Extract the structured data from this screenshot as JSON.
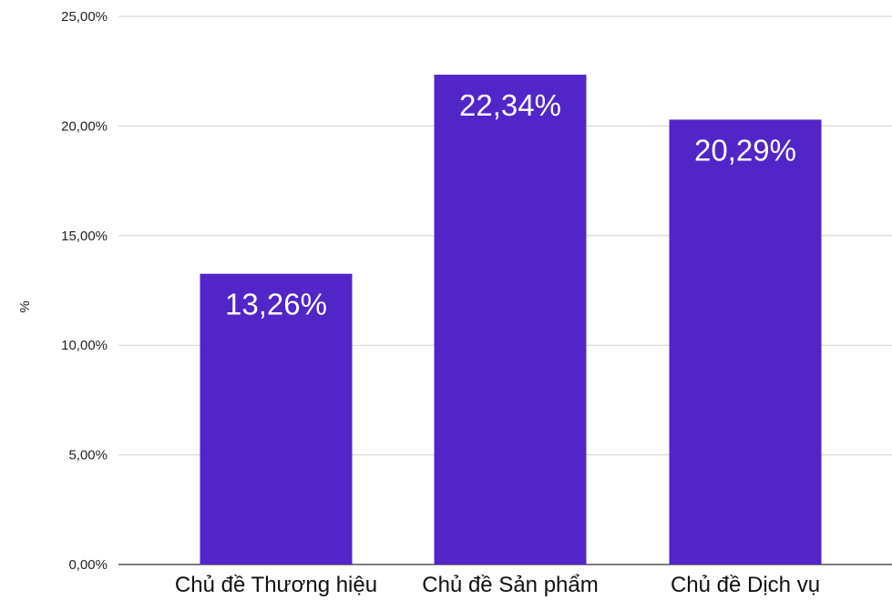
{
  "chart_data": {
    "type": "bar",
    "categories": [
      "Chủ đề Thương hiệu",
      "Chủ đề Sản phẩm",
      "Chủ đề Dịch vụ"
    ],
    "values": [
      13.26,
      22.34,
      20.29
    ],
    "data_labels": [
      "13,26%",
      "22,34%",
      "20,29%"
    ],
    "ylabel": "%",
    "ylim": [
      0,
      25
    ],
    "yticks": [
      0,
      5,
      10,
      15,
      20,
      25
    ],
    "ytick_labels": [
      "0,00%",
      "5,00%",
      "10,00%",
      "15,00%",
      "20,00%",
      "25,00%"
    ],
    "grid": true,
    "legend": "none",
    "bar_color": "#5225c8"
  }
}
